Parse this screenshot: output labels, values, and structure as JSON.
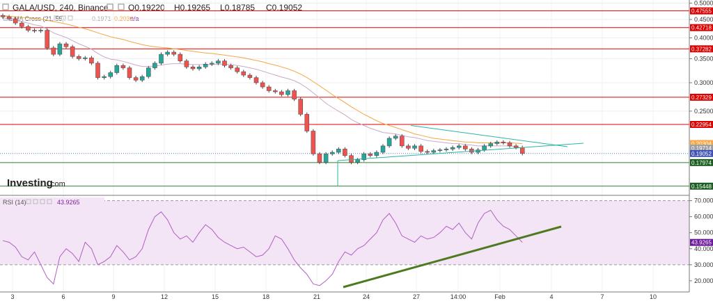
{
  "header": {
    "symbol_line": "GALA/USD, 240, Binance",
    "ohlc": [
      {
        "key": "O",
        "value": "0.19220"
      },
      {
        "key": "H",
        "value": "0.19265"
      },
      {
        "key": "L",
        "value": "0.18785"
      },
      {
        "key": "C",
        "value": "0.19052"
      }
    ],
    "ema_label": "EMA Cross (21, 55)",
    "ema_fast_value": "0.1971",
    "ema_slow_value": "0.2030",
    "ema_extra": "n/a"
  },
  "watermark": {
    "brand": "Investing",
    "suffix": ".com"
  },
  "rsi_header": {
    "label": "RSI (14)",
    "value": "43.9265"
  },
  "colors": {
    "up": "#26a69a",
    "down": "#ef5350",
    "ema_fast": "#c9a9c9",
    "ema_slow": "#f7a545",
    "red_level": "#e00000",
    "green_level": "#2e7d32",
    "triangle": "#2bb5a0",
    "rsi_line": "#b05fc4",
    "rsi_band": "#f3e5f5",
    "rsi_trend": "#4e7a1f"
  },
  "chart_data": [
    {
      "type": "candlestick",
      "title": "GALA/USD, 240, Binance",
      "x_ticks": [
        "3",
        "6",
        "9",
        "12",
        "15",
        "18",
        "21",
        "24",
        "27",
        "14:00",
        "Feb",
        "4",
        "7",
        "10"
      ],
      "y_ticks": [
        "0.50000",
        "0.45000",
        "0.40000",
        "0.35000",
        "0.30000",
        "0.25000"
      ],
      "y_scale": "log",
      "ylim": [
        0.145,
        0.51
      ],
      "horizontal_levels": [
        {
          "value": 0.47555,
          "label": "0.47555",
          "color": "red"
        },
        {
          "value": 0.42718,
          "label": "0.42718",
          "color": "red"
        },
        {
          "value": 0.37282,
          "label": "0.37282",
          "color": "red"
        },
        {
          "value": 0.27329,
          "label": "0.27329",
          "color": "red"
        },
        {
          "value": 0.22954,
          "label": "0.22954",
          "color": "red"
        },
        {
          "value": 0.17974,
          "label": "0.17974",
          "color": "green"
        },
        {
          "value": 0.15448,
          "label": "0.15448",
          "color": "green"
        }
      ],
      "price_tags": [
        {
          "value": 0.20304,
          "label": "0.20304",
          "color": "orange"
        },
        {
          "value": 0.19714,
          "label": "0.19714",
          "color": "gray"
        },
        {
          "value": 0.19052,
          "label": "0.19052",
          "color": "blue"
        }
      ],
      "series": [
        {
          "name": "close",
          "values": [
            0.458,
            0.452,
            0.44,
            0.43,
            0.42,
            0.418,
            0.42,
            0.375,
            0.36,
            0.385,
            0.378,
            0.355,
            0.35,
            0.352,
            0.34,
            0.31,
            0.312,
            0.32,
            0.335,
            0.33,
            0.31,
            0.305,
            0.312,
            0.33,
            0.34,
            0.36,
            0.365,
            0.36,
            0.345,
            0.332,
            0.328,
            0.332,
            0.338,
            0.34,
            0.345,
            0.335,
            0.33,
            0.322,
            0.315,
            0.31,
            0.3,
            0.292,
            0.285,
            0.283,
            0.278,
            0.285,
            0.27,
            0.245,
            0.22,
            0.19,
            0.18,
            0.19,
            0.192,
            0.196,
            0.188,
            0.18,
            0.183,
            0.19,
            0.188,
            0.192,
            0.2,
            0.21,
            0.213,
            0.2,
            0.197,
            0.2,
            0.193,
            0.192,
            0.194,
            0.195,
            0.196,
            0.198,
            0.2,
            0.196,
            0.192,
            0.195,
            0.2,
            0.203,
            0.205,
            0.204,
            0.2,
            0.198,
            0.19052
          ]
        },
        {
          "name": "EMA 21",
          "values": [
            0.455,
            0.452,
            0.448,
            0.444,
            0.44,
            0.435,
            0.432,
            0.423,
            0.413,
            0.407,
            0.401,
            0.393,
            0.385,
            0.379,
            0.372,
            0.362,
            0.354,
            0.349,
            0.347,
            0.344,
            0.34,
            0.336,
            0.333,
            0.333,
            0.334,
            0.336,
            0.338,
            0.339,
            0.339,
            0.338,
            0.337,
            0.337,
            0.337,
            0.337,
            0.338,
            0.338,
            0.337,
            0.335,
            0.333,
            0.33,
            0.327,
            0.323,
            0.319,
            0.315,
            0.311,
            0.308,
            0.304,
            0.298,
            0.29,
            0.281,
            0.272,
            0.263,
            0.256,
            0.25,
            0.244,
            0.237,
            0.232,
            0.228,
            0.224,
            0.221,
            0.218,
            0.217,
            0.216,
            0.214,
            0.212,
            0.211,
            0.209,
            0.207,
            0.206,
            0.205,
            0.204,
            0.203,
            0.203,
            0.202,
            0.201,
            0.2,
            0.2,
            0.2,
            0.2,
            0.2,
            0.2,
            0.199,
            0.1971
          ]
        },
        {
          "name": "EMA 55",
          "values": [
            0.46,
            0.459,
            0.458,
            0.456,
            0.455,
            0.453,
            0.451,
            0.448,
            0.444,
            0.441,
            0.437,
            0.433,
            0.428,
            0.424,
            0.419,
            0.413,
            0.408,
            0.403,
            0.399,
            0.396,
            0.391,
            0.387,
            0.383,
            0.38,
            0.378,
            0.376,
            0.375,
            0.373,
            0.371,
            0.369,
            0.367,
            0.365,
            0.363,
            0.362,
            0.36,
            0.358,
            0.356,
            0.354,
            0.352,
            0.349,
            0.346,
            0.343,
            0.339,
            0.336,
            0.332,
            0.328,
            0.323,
            0.317,
            0.31,
            0.302,
            0.294,
            0.286,
            0.278,
            0.271,
            0.264,
            0.257,
            0.251,
            0.245,
            0.24,
            0.235,
            0.231,
            0.228,
            0.225,
            0.222,
            0.219,
            0.216,
            0.214,
            0.212,
            0.21,
            0.209,
            0.208,
            0.207,
            0.206,
            0.205,
            0.205,
            0.204,
            0.204,
            0.204,
            0.204,
            0.204,
            0.204,
            0.2035,
            0.203
          ]
        }
      ]
    },
    {
      "type": "line",
      "title": "RSI (14)",
      "y_ticks": [
        "70.0000",
        "60.0000",
        "50.0000",
        "40.0000",
        "30.0000",
        "20.0000"
      ],
      "ylim": [
        13,
        72
      ],
      "band": [
        30,
        70
      ],
      "last_value": 43.9265,
      "series": [
        {
          "name": "RSI",
          "values": [
            45,
            44,
            41,
            35,
            33,
            38,
            30,
            22,
            18,
            35,
            40,
            37,
            32,
            44,
            40,
            30,
            32,
            35,
            42,
            38,
            33,
            35,
            40,
            52,
            60,
            63,
            58,
            50,
            46,
            48,
            44,
            50,
            55,
            52,
            47,
            44,
            42,
            40,
            41,
            38,
            35,
            36,
            40,
            48,
            46,
            40,
            33,
            28,
            24,
            18,
            17,
            20,
            24,
            32,
            38,
            36,
            40,
            42,
            46,
            50,
            58,
            62,
            56,
            48,
            46,
            44,
            48,
            46,
            47,
            50,
            54,
            52,
            56,
            50,
            46,
            56,
            62,
            64,
            58,
            54,
            52,
            48,
            43.9265
          ]
        }
      ]
    }
  ]
}
